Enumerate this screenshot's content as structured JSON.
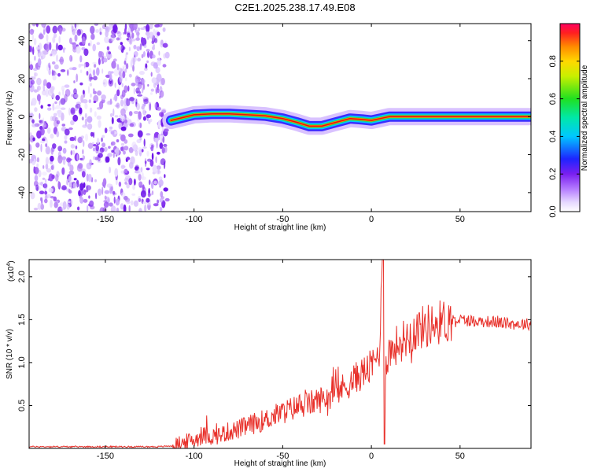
{
  "title": "C2E1.2025.238.17.49.E08",
  "chart_data": [
    {
      "type": "heatmap",
      "name": "spectrogram",
      "xlabel": "Height of straight line (km)",
      "ylabel": "Frequency (Hz)",
      "xlim": [
        -193,
        90
      ],
      "ylim": [
        -50,
        49
      ],
      "xticks": [
        -150,
        -100,
        -50,
        0,
        50
      ],
      "xtick_labels": [
        "-150",
        "-100",
        "-50",
        "0",
        "50"
      ],
      "yticks": [
        -40,
        -20,
        0,
        20,
        40
      ],
      "ytick_labels": [
        "-40",
        "-20",
        "0",
        "20",
        "40"
      ],
      "noise_region_x": [
        -193,
        -115
      ],
      "ridge": {
        "x": [
          -113,
          -100,
          -90,
          -80,
          -70,
          -60,
          -50,
          -42,
          -35,
          -28,
          -20,
          -12,
          -5,
          0,
          5,
          10,
          20,
          90
        ],
        "y": [
          -2,
          1,
          1.5,
          1.5,
          1,
          0.5,
          -1,
          -3,
          -5,
          -5,
          -3,
          -1,
          -1.5,
          -2,
          -1,
          0,
          0,
          0
        ]
      },
      "colorbar": {
        "label": "Normalized spectral amplitude",
        "range": [
          0.0,
          1.0
        ],
        "ticks": [
          0.0,
          0.2,
          0.4,
          0.6,
          0.8
        ],
        "tick_labels": [
          "0.0",
          "0.2",
          "0.4",
          "0.6",
          "0.8"
        ]
      }
    },
    {
      "type": "line",
      "name": "snr",
      "xlabel": "Height of straight line (km)",
      "ylabel": "SNR (10 * v/v)",
      "scale_note": "(x10",
      "scale_exp": "4",
      "scale_close": ")",
      "xlim": [
        -193,
        90
      ],
      "ylim": [
        0,
        2.2
      ],
      "xticks": [
        -150,
        -100,
        -50,
        0,
        50
      ],
      "xtick_labels": [
        "-150",
        "-100",
        "-50",
        "0",
        "50"
      ],
      "yticks": [
        0.5,
        1.0,
        1.5,
        2.0
      ],
      "ytick_labels": [
        "0.5",
        "1.0",
        "1.5",
        "2.0"
      ],
      "color": "#e8302a",
      "series": [
        {
          "name": "SNR",
          "x": [
            -193,
            -150,
            -120,
            -112,
            -105,
            -100,
            -95,
            -90,
            -85,
            -80,
            -75,
            -70,
            -65,
            -60,
            -55,
            -50,
            -45,
            -40,
            -35,
            -30,
            -25,
            -20,
            -15,
            -10,
            -5,
            0,
            3,
            5,
            6,
            7,
            8,
            10,
            15,
            20,
            25,
            30,
            35,
            40,
            45,
            50,
            55,
            60,
            65,
            70,
            75,
            80,
            85,
            90
          ],
          "y": [
            0.02,
            0.02,
            0.02,
            0.03,
            0.07,
            0.1,
            0.15,
            0.14,
            0.16,
            0.2,
            0.22,
            0.26,
            0.3,
            0.33,
            0.38,
            0.42,
            0.46,
            0.5,
            0.52,
            0.56,
            0.6,
            0.65,
            0.72,
            0.8,
            0.88,
            0.95,
            1.05,
            1.2,
            2.2,
            0.8,
            1.0,
            1.12,
            1.22,
            1.3,
            1.38,
            1.42,
            1.45,
            1.48,
            1.5,
            1.5,
            1.49,
            1.48,
            1.48,
            1.47,
            1.46,
            1.45,
            1.45,
            1.45
          ]
        }
      ]
    }
  ]
}
